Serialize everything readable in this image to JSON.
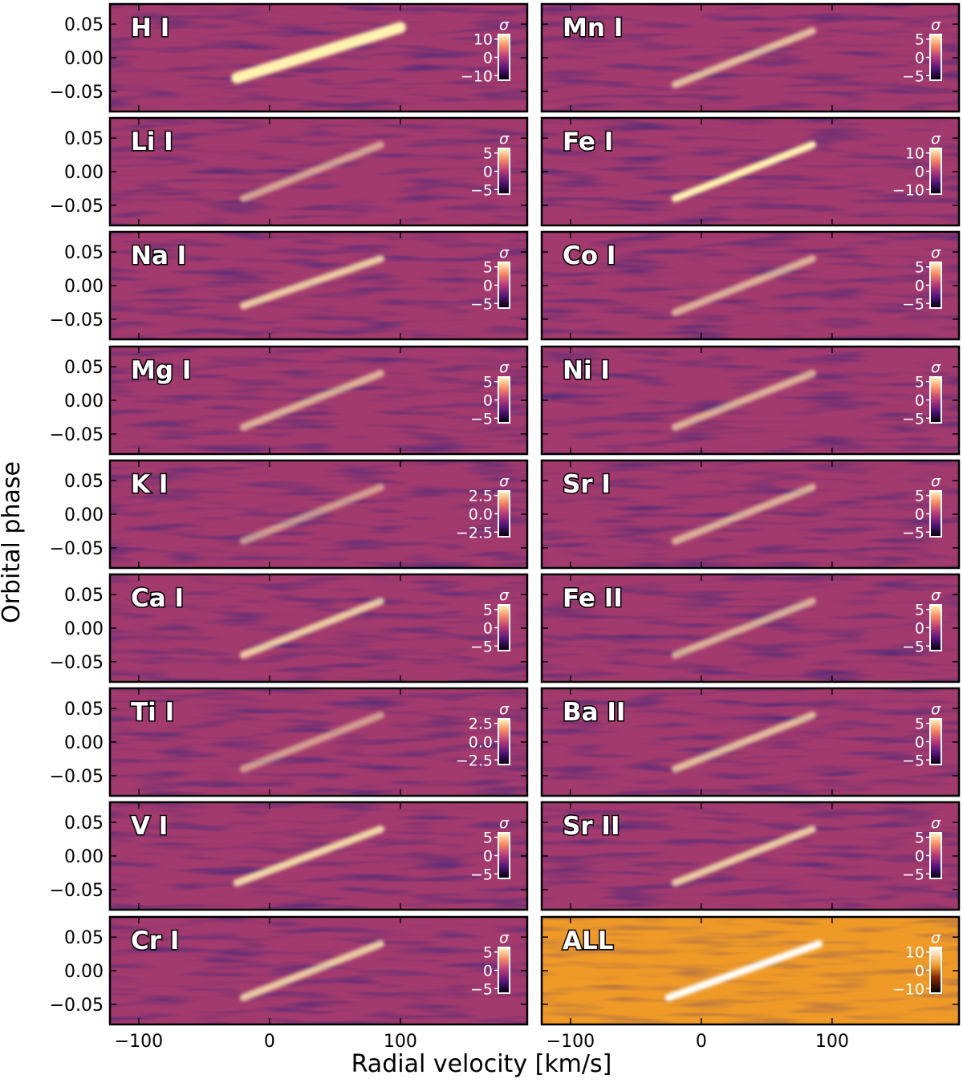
{
  "chart_data": {
    "type": "heatmap",
    "description_axes": {
      "xlabel": "Radial velocity [km/s]",
      "ylabel": "Orbital phase",
      "xlim": [
        -122,
        197
      ],
      "ylim": [
        -0.08,
        0.08
      ],
      "xticks": [
        -100,
        0,
        100
      ],
      "xtick_labels": [
        "−100",
        "0",
        "100"
      ],
      "yticks": [
        0.05,
        0.0,
        -0.05
      ],
      "ytick_labels": [
        "0.05",
        "0.00",
        "−0.05"
      ]
    },
    "colorbar_label": "σ",
    "colors": {
      "magma_low": "#1c1044",
      "magma_mid": "#a33a6d",
      "magma_high": "#fff3b0",
      "afmhot_background": "#ef9a27",
      "frame": "#000000"
    },
    "layout": {
      "rows": 9,
      "columns": 2
    },
    "panels": [
      {
        "name": "H I",
        "colormap": "magma",
        "colorbar_ticks": [
          10,
          0,
          -10
        ],
        "colorbar_tick_labels": [
          "10",
          "0",
          "−10"
        ],
        "signal_sigma": 12,
        "trail_rv_range": [
          -25,
          100
        ],
        "trail_phase_range": [
          -0.03,
          0.045
        ]
      },
      {
        "name": "Mn I",
        "colormap": "magma",
        "colorbar_ticks": [
          5,
          0,
          -5
        ],
        "colorbar_tick_labels": [
          "5",
          "0",
          "−5"
        ],
        "signal_sigma": 5,
        "trail_rv_range": [
          -20,
          85
        ],
        "trail_phase_range": [
          -0.04,
          0.04
        ]
      },
      {
        "name": "Li I",
        "colormap": "magma",
        "colorbar_ticks": [
          5,
          0,
          -5
        ],
        "colorbar_tick_labels": [
          "5",
          "0",
          "−5"
        ],
        "signal_sigma": 3,
        "trail_rv_range": [
          -20,
          85
        ],
        "trail_phase_range": [
          -0.04,
          0.04
        ]
      },
      {
        "name": "Fe I",
        "colormap": "magma",
        "colorbar_ticks": [
          10,
          0,
          -10
        ],
        "colorbar_tick_labels": [
          "10",
          "0",
          "−10"
        ],
        "signal_sigma": 12,
        "trail_rv_range": [
          -20,
          85
        ],
        "trail_phase_range": [
          -0.04,
          0.04
        ]
      },
      {
        "name": "Na I",
        "colormap": "magma",
        "colorbar_ticks": [
          5,
          0,
          -5
        ],
        "colorbar_tick_labels": [
          "5",
          "0",
          "−5"
        ],
        "signal_sigma": 6,
        "trail_rv_range": [
          -20,
          85
        ],
        "trail_phase_range": [
          -0.03,
          0.04
        ]
      },
      {
        "name": "Co I",
        "colormap": "magma",
        "colorbar_ticks": [
          5,
          0,
          -5
        ],
        "colorbar_tick_labels": [
          "5",
          "0",
          "−5"
        ],
        "signal_sigma": 4,
        "trail_rv_range": [
          -20,
          85
        ],
        "trail_phase_range": [
          -0.04,
          0.04
        ]
      },
      {
        "name": "Mg I",
        "colormap": "magma",
        "colorbar_ticks": [
          5,
          0,
          -5
        ],
        "colorbar_tick_labels": [
          "5",
          "0",
          "−5"
        ],
        "signal_sigma": 4,
        "trail_rv_range": [
          -20,
          85
        ],
        "trail_phase_range": [
          -0.04,
          0.04
        ]
      },
      {
        "name": "Ni I",
        "colormap": "magma",
        "colorbar_ticks": [
          5,
          0,
          -5
        ],
        "colorbar_tick_labels": [
          "5",
          "0",
          "−5"
        ],
        "signal_sigma": 4,
        "trail_rv_range": [
          -20,
          85
        ],
        "trail_phase_range": [
          -0.04,
          0.04
        ]
      },
      {
        "name": "K I",
        "colormap": "magma",
        "colorbar_ticks": [
          2.5,
          0.0,
          -2.5
        ],
        "colorbar_tick_labels": [
          "2.5",
          "0.0",
          "−2.5"
        ],
        "signal_sigma": 2.5,
        "trail_rv_range": [
          -20,
          85
        ],
        "trail_phase_range": [
          -0.04,
          0.04
        ]
      },
      {
        "name": "Sr I",
        "colormap": "magma",
        "colorbar_ticks": [
          5,
          0,
          -5
        ],
        "colorbar_tick_labels": [
          "5",
          "0",
          "−5"
        ],
        "signal_sigma": 4,
        "trail_rv_range": [
          -20,
          85
        ],
        "trail_phase_range": [
          -0.04,
          0.04
        ]
      },
      {
        "name": "Ca I",
        "colormap": "magma",
        "colorbar_ticks": [
          5,
          0,
          -5
        ],
        "colorbar_tick_labels": [
          "5",
          "0",
          "−5"
        ],
        "signal_sigma": 6,
        "trail_rv_range": [
          -20,
          85
        ],
        "trail_phase_range": [
          -0.04,
          0.04
        ]
      },
      {
        "name": "Fe II",
        "colormap": "magma",
        "colorbar_ticks": [
          5,
          0,
          -5
        ],
        "colorbar_tick_labels": [
          "5",
          "0",
          "−5"
        ],
        "signal_sigma": 4,
        "trail_rv_range": [
          -20,
          85
        ],
        "trail_phase_range": [
          -0.04,
          0.04
        ]
      },
      {
        "name": "Ti I",
        "colormap": "magma",
        "colorbar_ticks": [
          2.5,
          0.0,
          -2.5
        ],
        "colorbar_tick_labels": [
          "2.5",
          "0.0",
          "−2.5"
        ],
        "signal_sigma": 2.5,
        "trail_rv_range": [
          -20,
          85
        ],
        "trail_phase_range": [
          -0.04,
          0.04
        ]
      },
      {
        "name": "Ba II",
        "colormap": "magma",
        "colorbar_ticks": [
          5,
          0,
          -5
        ],
        "colorbar_tick_labels": [
          "5",
          "0",
          "−5"
        ],
        "signal_sigma": 5,
        "trail_rv_range": [
          -20,
          85
        ],
        "trail_phase_range": [
          -0.04,
          0.04
        ]
      },
      {
        "name": "V I",
        "colormap": "magma",
        "colorbar_ticks": [
          5,
          0,
          -5
        ],
        "colorbar_tick_labels": [
          "5",
          "0",
          "−5"
        ],
        "signal_sigma": 7,
        "trail_rv_range": [
          -25,
          85
        ],
        "trail_phase_range": [
          -0.04,
          0.04
        ]
      },
      {
        "name": "Sr II",
        "colormap": "magma",
        "colorbar_ticks": [
          5,
          0,
          -5
        ],
        "colorbar_tick_labels": [
          "5",
          "0",
          "−5"
        ],
        "signal_sigma": 6,
        "trail_rv_range": [
          -20,
          85
        ],
        "trail_phase_range": [
          -0.04,
          0.04
        ]
      },
      {
        "name": "Cr I",
        "colormap": "magma",
        "colorbar_ticks": [
          5,
          0,
          -5
        ],
        "colorbar_tick_labels": [
          "5",
          "0",
          "−5"
        ],
        "signal_sigma": 6,
        "trail_rv_range": [
          -20,
          85
        ],
        "trail_phase_range": [
          -0.04,
          0.04
        ]
      },
      {
        "name": "ALL",
        "colormap": "afmhot",
        "colorbar_ticks": [
          10,
          0,
          -10
        ],
        "colorbar_tick_labels": [
          "10",
          "0",
          "−10"
        ],
        "signal_sigma": 14,
        "trail_rv_range": [
          -25,
          90
        ],
        "trail_phase_range": [
          -0.04,
          0.04
        ]
      }
    ]
  }
}
